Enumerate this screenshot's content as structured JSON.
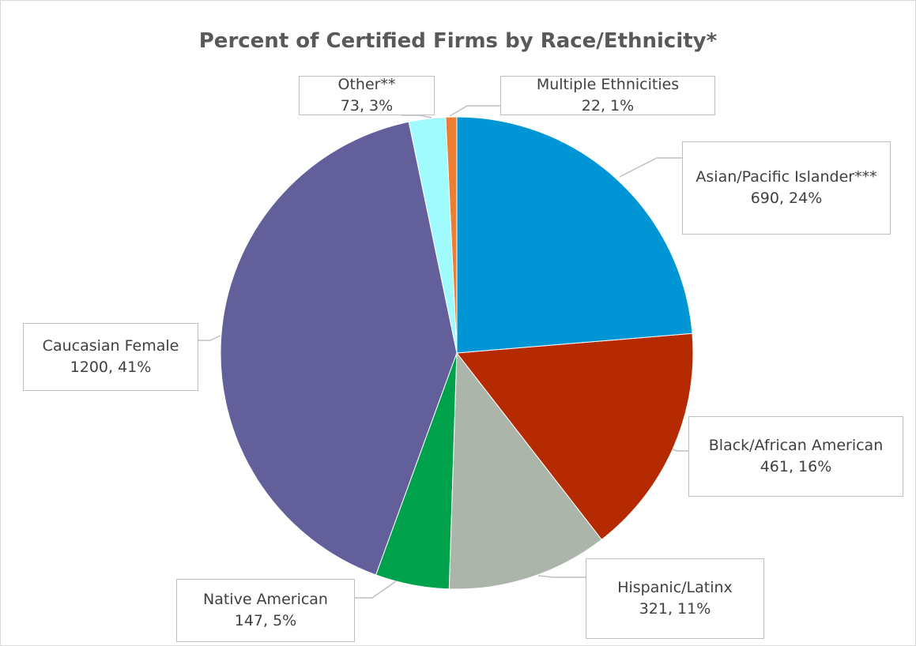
{
  "chart_data": {
    "type": "pie",
    "title": "Percent of Certified Firms by Race/Ethnicity*",
    "categories": [
      "Asian/Pacific Islander***",
      "Black/African American",
      "Hispanic/Latinx",
      "Native American",
      "Caucasian Female",
      "Other**",
      "Multiple Ethnicities"
    ],
    "values": [
      690,
      461,
      321,
      147,
      1200,
      73,
      22
    ],
    "value_labels": [
      "690, 24%",
      "461, 16%",
      "321, 11%",
      "147, 5%",
      "1200, 41%",
      "73, 3%",
      "22, 1%"
    ],
    "colors": [
      "#0096d6",
      "#b52a00",
      "#abb5aa",
      "#00a14b",
      "#635f9a",
      "#a0fbff",
      "#ed7d31"
    ]
  }
}
